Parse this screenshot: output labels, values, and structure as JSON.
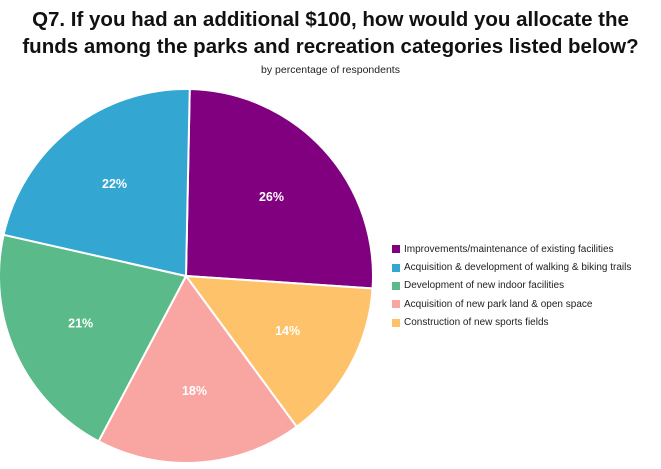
{
  "chart_data": {
    "type": "pie",
    "title_line1": "Q7. If you had an additional $100, how would you allocate the",
    "title_line2": "funds among the parks and recreation categories listed below?",
    "subtitle": "by percentage of respondents",
    "slices": [
      {
        "label": "Improvements/maintenance of existing facilities",
        "value": 26,
        "display": "26%",
        "color": "#800080"
      },
      {
        "label": "Acquisition & development of walking & biking trails",
        "value": 22,
        "display": "22%",
        "color": "#33a6d2"
      },
      {
        "label": "Development of new indoor facilities",
        "value": 21,
        "display": "21%",
        "color": "#5aba8a"
      },
      {
        "label": "Acquisition of new park land & open space",
        "value": 18,
        "display": "18%",
        "color": "#f9a5a2"
      },
      {
        "label": "Construction of new sports fields",
        "value": 14,
        "display": "14%",
        "color": "#fec36a"
      }
    ],
    "slice_order_clockwise_from_top": [
      0,
      4,
      3,
      2,
      1
    ],
    "legend_position": "right"
  }
}
